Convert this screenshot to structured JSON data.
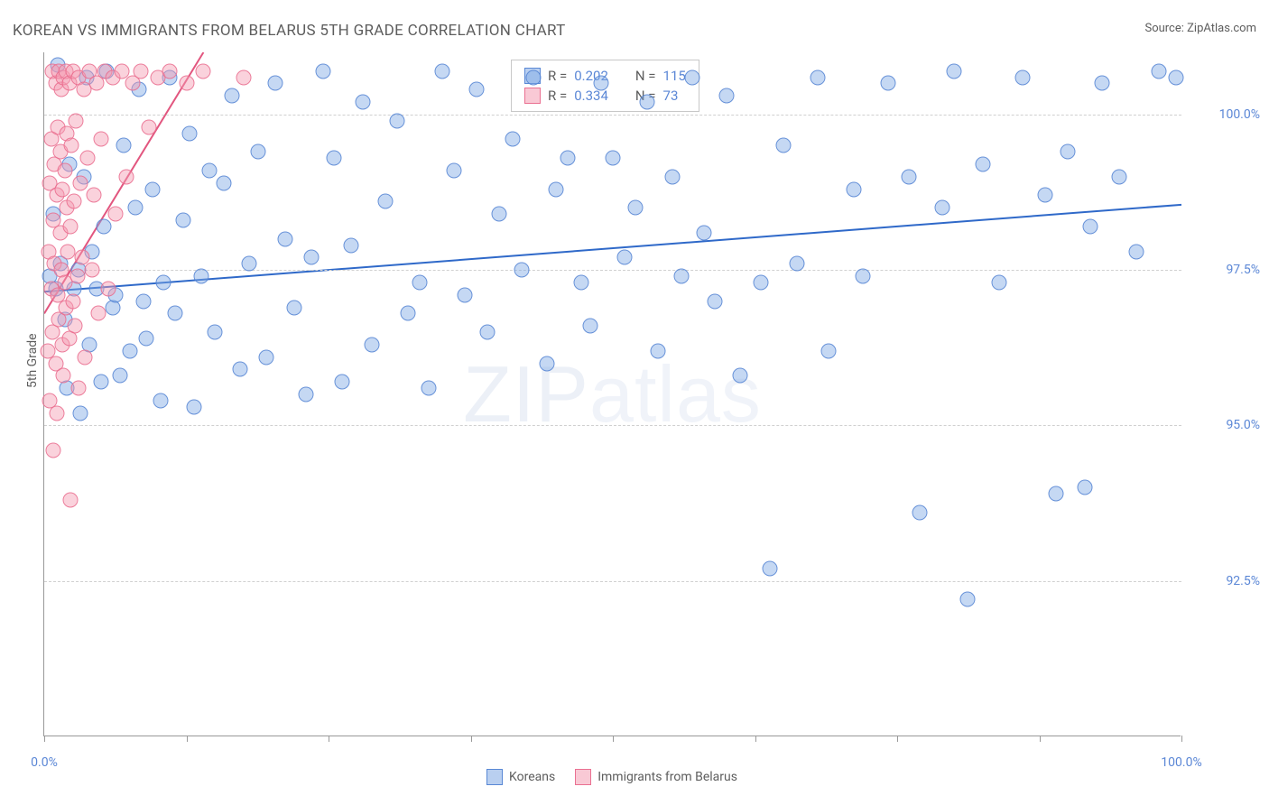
{
  "title": "KOREAN VS IMMIGRANTS FROM BELARUS 5TH GRADE CORRELATION CHART",
  "source_label": "Source: ",
  "source_name": "ZipAtlas.com",
  "ylabel": "5th Grade",
  "watermark_a": "ZIP",
  "watermark_b": "atlas",
  "chart": {
    "type": "scatter",
    "xlim": [
      0,
      100
    ],
    "ylim": [
      90,
      101
    ],
    "x_tick_positions": [
      0,
      12.5,
      25,
      37.5,
      50,
      62.5,
      75,
      87.5,
      100
    ],
    "x_tick_labels": {
      "0": "0.0%",
      "100": "100.0%"
    },
    "y_gridlines": [
      92.5,
      95.0,
      97.5,
      100.0
    ],
    "y_tick_labels": [
      "92.5%",
      "95.0%",
      "97.5%",
      "100.0%"
    ],
    "grid_color": "#d0d0d0",
    "axis_color": "#999999",
    "tick_label_color": "#5b87d6",
    "series": [
      {
        "name": "Koreans",
        "legend_label": "Koreans",
        "marker_color_fill": "rgba(127,168,228,0.45)",
        "marker_color_stroke": "rgba(79,128,210,0.8)",
        "marker_size": 17,
        "trend": {
          "x1": 0,
          "y1": 97.15,
          "x2": 100,
          "y2": 98.55,
          "color": "#2f69c9",
          "width": 2
        },
        "stats": {
          "R": "0.202",
          "N": "115"
        },
        "points": [
          [
            0.5,
            97.4
          ],
          [
            0.8,
            98.4
          ],
          [
            1.0,
            97.2
          ],
          [
            1.2,
            100.8
          ],
          [
            1.4,
            97.6
          ],
          [
            1.8,
            96.7
          ],
          [
            2.0,
            95.6
          ],
          [
            2.2,
            99.2
          ],
          [
            2.6,
            97.2
          ],
          [
            3.0,
            97.5
          ],
          [
            3.2,
            95.2
          ],
          [
            3.5,
            99.0
          ],
          [
            3.7,
            100.6
          ],
          [
            4.0,
            96.3
          ],
          [
            4.2,
            97.8
          ],
          [
            4.6,
            97.2
          ],
          [
            5.0,
            95.7
          ],
          [
            5.2,
            98.2
          ],
          [
            5.5,
            100.7
          ],
          [
            6.0,
            96.9
          ],
          [
            6.3,
            97.1
          ],
          [
            6.7,
            95.8
          ],
          [
            7.0,
            99.5
          ],
          [
            7.5,
            96.2
          ],
          [
            8.0,
            98.5
          ],
          [
            8.3,
            100.4
          ],
          [
            8.7,
            97.0
          ],
          [
            9.0,
            96.4
          ],
          [
            9.5,
            98.8
          ],
          [
            10.2,
            95.4
          ],
          [
            10.5,
            97.3
          ],
          [
            11.0,
            100.6
          ],
          [
            11.5,
            96.8
          ],
          [
            12.2,
            98.3
          ],
          [
            12.8,
            99.7
          ],
          [
            13.2,
            95.3
          ],
          [
            13.8,
            97.4
          ],
          [
            14.5,
            99.1
          ],
          [
            15.0,
            96.5
          ],
          [
            15.8,
            98.9
          ],
          [
            16.5,
            100.3
          ],
          [
            17.2,
            95.9
          ],
          [
            18.0,
            97.6
          ],
          [
            18.8,
            99.4
          ],
          [
            19.5,
            96.1
          ],
          [
            20.3,
            100.5
          ],
          [
            21.2,
            98.0
          ],
          [
            22.0,
            96.9
          ],
          [
            23.0,
            95.5
          ],
          [
            23.5,
            97.7
          ],
          [
            24.5,
            100.7
          ],
          [
            25.5,
            99.3
          ],
          [
            26.2,
            95.7
          ],
          [
            27.0,
            97.9
          ],
          [
            28.0,
            100.2
          ],
          [
            28.8,
            96.3
          ],
          [
            30.0,
            98.6
          ],
          [
            31.0,
            99.9
          ],
          [
            32.0,
            96.8
          ],
          [
            33.0,
            97.3
          ],
          [
            33.8,
            95.6
          ],
          [
            35.0,
            100.7
          ],
          [
            36.0,
            99.1
          ],
          [
            37.0,
            97.1
          ],
          [
            38.0,
            100.4
          ],
          [
            39.0,
            96.5
          ],
          [
            40.0,
            98.4
          ],
          [
            41.2,
            99.6
          ],
          [
            42.0,
            97.5
          ],
          [
            43.0,
            100.6
          ],
          [
            44.2,
            96.0
          ],
          [
            45.0,
            98.8
          ],
          [
            46.0,
            99.3
          ],
          [
            47.2,
            97.3
          ],
          [
            48.0,
            96.6
          ],
          [
            49.0,
            100.5
          ],
          [
            50.0,
            99.3
          ],
          [
            51.0,
            97.7
          ],
          [
            52.0,
            98.5
          ],
          [
            53.0,
            100.2
          ],
          [
            54.0,
            96.2
          ],
          [
            55.2,
            99.0
          ],
          [
            56.0,
            97.4
          ],
          [
            57.0,
            100.6
          ],
          [
            58.0,
            98.1
          ],
          [
            59.0,
            97.0
          ],
          [
            60.0,
            100.3
          ],
          [
            61.2,
            95.8
          ],
          [
            63.0,
            97.3
          ],
          [
            63.8,
            92.7
          ],
          [
            65.0,
            99.5
          ],
          [
            66.2,
            97.6
          ],
          [
            68.0,
            100.6
          ],
          [
            69.0,
            96.2
          ],
          [
            71.2,
            98.8
          ],
          [
            72.0,
            97.4
          ],
          [
            74.2,
            100.5
          ],
          [
            76.0,
            99.0
          ],
          [
            77.0,
            93.6
          ],
          [
            79.0,
            98.5
          ],
          [
            80.0,
            100.7
          ],
          [
            81.2,
            92.2
          ],
          [
            82.5,
            99.2
          ],
          [
            84.0,
            97.3
          ],
          [
            86.0,
            100.6
          ],
          [
            88.0,
            98.7
          ],
          [
            89.0,
            93.9
          ],
          [
            90.0,
            99.4
          ],
          [
            91.5,
            94.0
          ],
          [
            92.0,
            98.2
          ],
          [
            93.0,
            100.5
          ],
          [
            94.5,
            99.0
          ],
          [
            96.0,
            97.8
          ],
          [
            98.0,
            100.7
          ],
          [
            99.5,
            100.6
          ]
        ]
      },
      {
        "name": "Immigrants from Belarus",
        "legend_label": "Immigrants from Belarus",
        "marker_color_fill": "rgba(244,156,178,0.45)",
        "marker_color_stroke": "rgba(232,102,138,0.8)",
        "marker_size": 17,
        "trend": {
          "x1": 0,
          "y1": 96.8,
          "x2": 14,
          "y2": 101.0,
          "color": "#e2567f",
          "width": 2
        },
        "stats": {
          "R": "0.334",
          "N": "73"
        },
        "points": [
          [
            0.3,
            96.2
          ],
          [
            0.4,
            97.8
          ],
          [
            0.5,
            98.9
          ],
          [
            0.5,
            95.4
          ],
          [
            0.6,
            99.6
          ],
          [
            0.6,
            97.2
          ],
          [
            0.7,
            100.7
          ],
          [
            0.7,
            96.5
          ],
          [
            0.8,
            98.3
          ],
          [
            0.8,
            94.6
          ],
          [
            0.9,
            99.2
          ],
          [
            0.9,
            97.6
          ],
          [
            1.0,
            100.5
          ],
          [
            1.0,
            96.0
          ],
          [
            1.1,
            98.7
          ],
          [
            1.1,
            95.2
          ],
          [
            1.2,
            99.8
          ],
          [
            1.2,
            97.1
          ],
          [
            1.3,
            100.7
          ],
          [
            1.3,
            96.7
          ],
          [
            1.4,
            98.1
          ],
          [
            1.4,
            99.4
          ],
          [
            1.5,
            97.5
          ],
          [
            1.5,
            100.4
          ],
          [
            1.6,
            96.3
          ],
          [
            1.6,
            98.8
          ],
          [
            1.7,
            100.6
          ],
          [
            1.7,
            95.8
          ],
          [
            1.8,
            99.1
          ],
          [
            1.8,
            97.3
          ],
          [
            1.9,
            100.7
          ],
          [
            1.9,
            96.9
          ],
          [
            2.0,
            98.5
          ],
          [
            2.0,
            99.7
          ],
          [
            2.1,
            97.8
          ],
          [
            2.2,
            100.5
          ],
          [
            2.2,
            96.4
          ],
          [
            2.3,
            98.2
          ],
          [
            2.3,
            93.8
          ],
          [
            2.4,
            99.5
          ],
          [
            2.5,
            100.7
          ],
          [
            2.5,
            97.0
          ],
          [
            2.6,
            98.6
          ],
          [
            2.7,
            96.6
          ],
          [
            2.8,
            99.9
          ],
          [
            2.9,
            97.4
          ],
          [
            3.0,
            100.6
          ],
          [
            3.0,
            95.6
          ],
          [
            3.2,
            98.9
          ],
          [
            3.3,
            97.7
          ],
          [
            3.5,
            100.4
          ],
          [
            3.6,
            96.1
          ],
          [
            3.8,
            99.3
          ],
          [
            4.0,
            100.7
          ],
          [
            4.2,
            97.5
          ],
          [
            4.4,
            98.7
          ],
          [
            4.6,
            100.5
          ],
          [
            4.8,
            96.8
          ],
          [
            5.0,
            99.6
          ],
          [
            5.3,
            100.7
          ],
          [
            5.6,
            97.2
          ],
          [
            6.0,
            100.6
          ],
          [
            6.3,
            98.4
          ],
          [
            6.8,
            100.7
          ],
          [
            7.2,
            99.0
          ],
          [
            7.8,
            100.5
          ],
          [
            8.5,
            100.7
          ],
          [
            9.2,
            99.8
          ],
          [
            10.0,
            100.6
          ],
          [
            11.0,
            100.7
          ],
          [
            12.5,
            100.5
          ],
          [
            14.0,
            100.7
          ],
          [
            17.5,
            100.6
          ]
        ]
      }
    ],
    "legend_top": {
      "R_label": "R = ",
      "N_label": "N = "
    }
  }
}
